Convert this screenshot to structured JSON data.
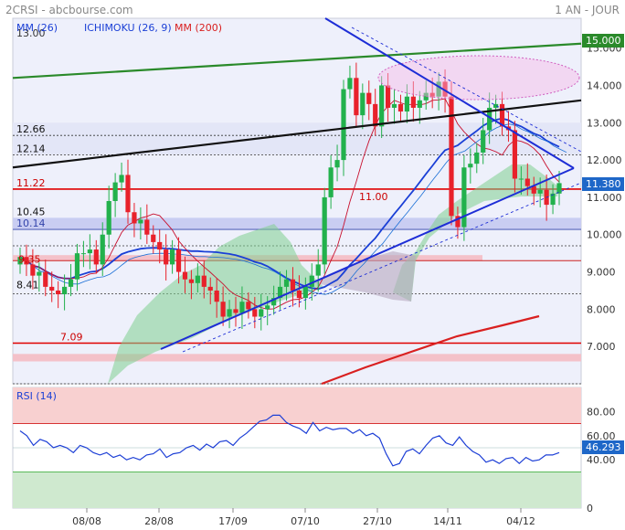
{
  "header": {
    "ticker": "2CRSI - abcbourse.com",
    "period": "1 AN - JOUR"
  },
  "legend": {
    "mm26": "MM (26)",
    "ichimoku": "ICHIMOKU (26, 9)",
    "mm200": "MM (200)"
  },
  "colors": {
    "up": "#22b14c",
    "down": "#e8212b",
    "mm26": "#1a3fd6",
    "mm200": "#d92020",
    "kijun": "#1a6fd6",
    "tenkan": "#c8102e",
    "cloud": "#7fcf8f",
    "resistance": "#2a8a2a",
    "trend": "#111111",
    "price_badge": "#1e67c8"
  },
  "main_axis": {
    "ylim": [
      6.0,
      15.8
    ],
    "ticks": [
      "15.000",
      "14.000",
      "13.000",
      "12.000",
      "11.000",
      "10.000",
      "9.000",
      "8.000",
      "7.000"
    ]
  },
  "dates": [
    "08/08",
    "28/08",
    "17/09",
    "07/10",
    "27/10",
    "14/11",
    "04/12"
  ],
  "last_price": "11.380",
  "level_labels": {
    "l1266": "12.66",
    "l1214": "12.14",
    "l1122": "11.22",
    "l1100": "11.00",
    "l1045": "10.45",
    "l1014": "10.14",
    "l935": "9.35",
    "l841": "8.41",
    "l709": "7.09",
    "l15": "15.000",
    "l1300": "13.00"
  },
  "rsi": {
    "title": "RSI (14)",
    "last": "46.293",
    "ticks": [
      "80.00",
      "60.00",
      "40.00",
      "0"
    ],
    "ylim": [
      0,
      100
    ],
    "overbought": 70,
    "oversold": 30,
    "values": [
      64,
      60,
      52,
      57,
      55,
      50,
      52,
      50,
      46,
      52,
      50,
      46,
      44,
      46,
      42,
      44,
      40,
      42,
      40,
      44,
      45,
      49,
      42,
      45,
      46,
      50,
      52,
      48,
      53,
      50,
      55,
      56,
      52,
      58,
      62,
      67,
      72,
      73,
      77,
      77,
      71,
      68,
      66,
      62,
      71,
      64,
      67,
      65,
      66,
      66,
      62,
      65,
      60,
      62,
      58,
      45,
      35,
      37,
      47,
      49,
      45,
      52,
      58,
      60,
      54,
      52,
      59,
      52,
      47,
      44,
      38,
      40,
      37,
      41,
      42,
      37,
      42,
      39,
      40,
      44,
      44,
      46
    ]
  },
  "chart_data": {
    "type": "candlestick",
    "title": "2CRSI",
    "xlabel": "",
    "ylabel": "",
    "x_ticks": [
      "08/08",
      "28/08",
      "17/09",
      "07/10",
      "27/10",
      "14/11",
      "04/12"
    ],
    "ylim": [
      6.0,
      15.8
    ],
    "closes": [
      9.4,
      9.2,
      8.9,
      9.0,
      8.6,
      8.5,
      8.4,
      8.6,
      8.8,
      9.5,
      9.5,
      9.6,
      9.2,
      10.0,
      10.9,
      11.4,
      11.6,
      10.6,
      10.3,
      10.4,
      10.0,
      9.8,
      9.6,
      9.2,
      9.6,
      9.0,
      8.8,
      8.7,
      8.9,
      8.6,
      8.5,
      8.2,
      7.8,
      8.0,
      7.9,
      8.2,
      8.0,
      7.8,
      8.0,
      8.1,
      8.3,
      8.6,
      8.8,
      8.5,
      8.3,
      8.6,
      8.9,
      9.2,
      11.0,
      11.8,
      12.0,
      13.9,
      14.2,
      13.2,
      13.8,
      13.5,
      12.9,
      14.0,
      13.4,
      13.5,
      13.3,
      13.7,
      13.4,
      13.6,
      13.8,
      13.7,
      14.1,
      13.7,
      10.5,
      10.2,
      11.8,
      11.9,
      12.2,
      12.8,
      13.4,
      13.5,
      12.9,
      12.8,
      11.5,
      11.5,
      11.3,
      11.1,
      11.2,
      10.8,
      11.1,
      11.38
    ],
    "levels": [
      15.0,
      12.66,
      12.14,
      11.22,
      11.0,
      10.45,
      10.14,
      9.35,
      8.41,
      7.09
    ]
  }
}
